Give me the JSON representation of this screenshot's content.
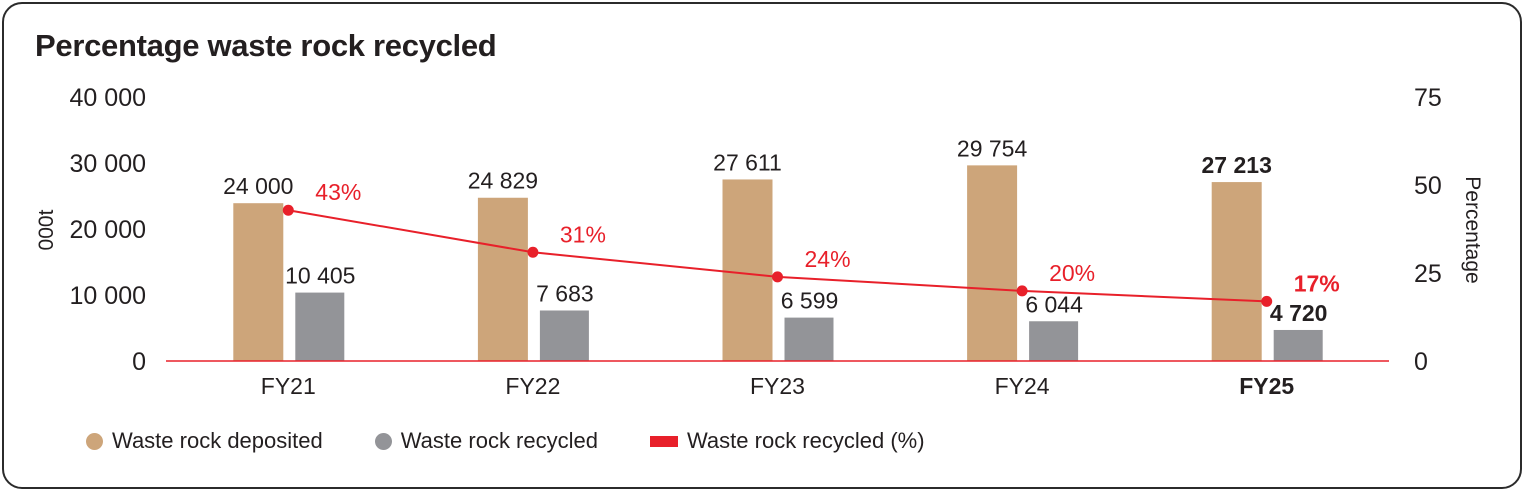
{
  "title": "Percentage waste rock recycled",
  "colors": {
    "deposited": "#CDA57A",
    "recycled": "#939498",
    "line": "#E8202A",
    "text": "#231F20",
    "frame": "#2B2B2B"
  },
  "left_axis": {
    "label": "000t",
    "ticks": [
      "40 000",
      "30 000",
      "20 000",
      "10 000",
      "0"
    ]
  },
  "right_axis": {
    "label": "Percentage",
    "ticks": [
      "75",
      "50",
      "25",
      "0"
    ]
  },
  "legend": [
    {
      "label": "Waste rock deposited",
      "shape": "dot",
      "color": "#CDA57A"
    },
    {
      "label": "Waste rock recycled",
      "shape": "dot",
      "color": "#939498"
    },
    {
      "label": "Waste rock recycled (%)",
      "shape": "bar",
      "color": "#E8202A"
    }
  ],
  "chart_data": {
    "type": "bar",
    "title": "Percentage waste rock recycled",
    "categories": [
      "FY21",
      "FY22",
      "FY23",
      "FY24",
      "FY25"
    ],
    "highlight_category": "FY25",
    "series": [
      {
        "name": "Waste rock deposited",
        "type": "bar",
        "axis": "left",
        "color": "#CDA57A",
        "values": [
          24000,
          24829,
          27611,
          29754,
          27213
        ],
        "labels": [
          "24 000",
          "24 829",
          "27 611",
          "29 754",
          "27 213"
        ]
      },
      {
        "name": "Waste rock recycled",
        "type": "bar",
        "axis": "left",
        "color": "#939498",
        "values": [
          10405,
          7683,
          6599,
          6044,
          4720
        ],
        "labels": [
          "10 405",
          "7 683",
          "6 599",
          "6 044",
          "4 720"
        ]
      },
      {
        "name": "Waste rock recycled (%)",
        "type": "line",
        "axis": "right",
        "color": "#E8202A",
        "values": [
          43,
          31,
          24,
          20,
          17
        ],
        "labels": [
          "43%",
          "31%",
          "24%",
          "20%",
          "17%"
        ]
      }
    ],
    "xlabel": "",
    "ylabel": "000t",
    "ylabel_right": "Percentage",
    "ylim": [
      0,
      40000
    ],
    "ylim_right": [
      0,
      75
    ],
    "yticks": [
      0,
      10000,
      20000,
      30000,
      40000
    ],
    "yticks_right": [
      0,
      25,
      50,
      75
    ],
    "grid": false,
    "legend_position": "bottom-left"
  }
}
